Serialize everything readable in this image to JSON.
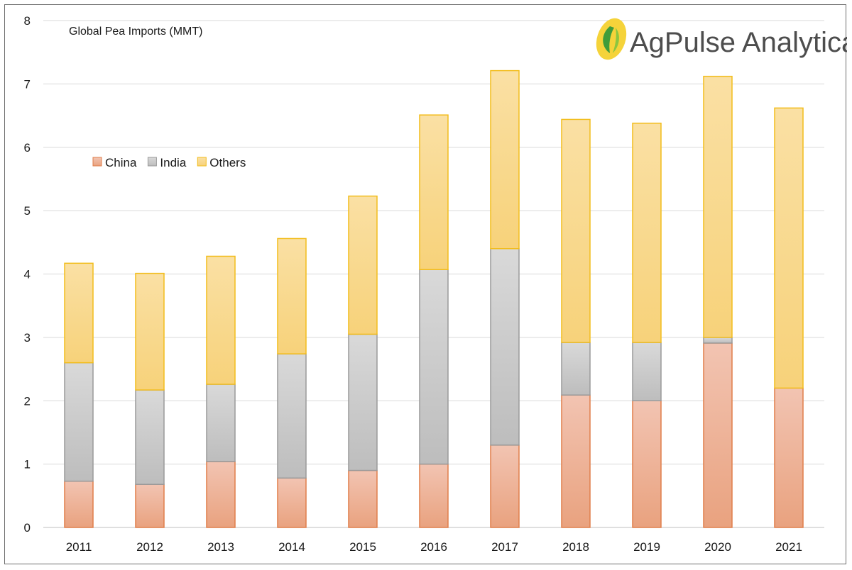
{
  "chart_data": {
    "type": "bar",
    "stacked": true,
    "title": "Global Pea Imports  (MMT)",
    "xlabel": "",
    "ylabel": "",
    "ylim": [
      0,
      8
    ],
    "yticks": [
      0,
      1,
      2,
      3,
      4,
      5,
      6,
      7,
      8
    ],
    "grid": true,
    "legend_position": "top-left",
    "categories": [
      "2011",
      "2012",
      "2013",
      "2014",
      "2015",
      "2016",
      "2017",
      "2018",
      "2019",
      "2020",
      "2021"
    ],
    "series": [
      {
        "name": "China",
        "color": "#ed9e7a",
        "values": [
          0.73,
          0.68,
          1.04,
          0.78,
          0.9,
          1.0,
          1.3,
          2.09,
          2.0,
          2.91,
          2.2
        ]
      },
      {
        "name": "India",
        "color": "#c2c2c2",
        "values": [
          1.87,
          1.49,
          1.22,
          1.96,
          2.15,
          3.07,
          3.1,
          0.83,
          0.92,
          0.09,
          0.0
        ]
      },
      {
        "name": "Others",
        "color": "#f9d27a",
        "values": [
          1.57,
          1.84,
          2.02,
          1.82,
          2.18,
          2.44,
          2.81,
          3.52,
          3.46,
          4.12,
          4.42
        ]
      }
    ]
  },
  "branding": {
    "logo_text": "AgPulse Analytica"
  }
}
